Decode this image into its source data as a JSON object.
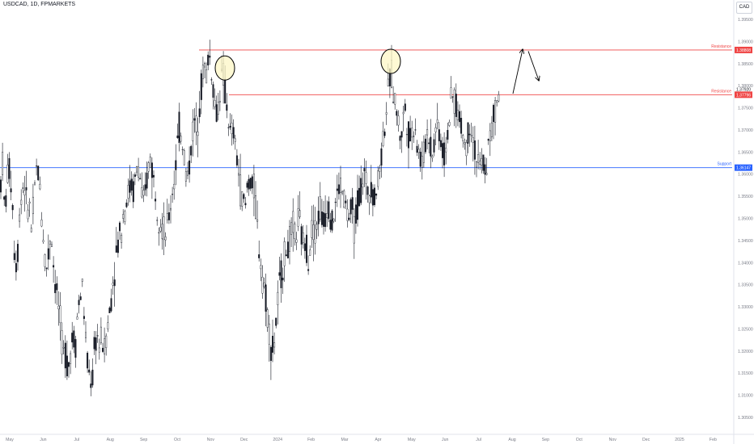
{
  "header": {
    "symbol_title": "USDCAD, 1D, FPMARKETS",
    "currency": "CAD"
  },
  "colors": {
    "resistance": "#ef4444",
    "support": "#2962ff",
    "candle": "#131722",
    "highlight_fill": "#fdf7c5",
    "highlight_stroke": "#000000",
    "axis_text": "#787b86"
  },
  "chart_data": {
    "type": "candlestick",
    "x_ticks": [
      "May",
      "Jun",
      "Jul",
      "Aug",
      "Sep",
      "Oct",
      "Nov",
      "Dec",
      "2024",
      "Feb",
      "Mar",
      "Apr",
      "May",
      "Jun",
      "Jul",
      "Aug",
      "Sep",
      "Oct",
      "Nov",
      "Dec",
      "2025",
      "Feb"
    ],
    "y_ticks": [
      "1.39500",
      "1.39000",
      "1.38500",
      "1.38000",
      "1.37500",
      "1.37000",
      "1.36500",
      "1.36000",
      "1.35500",
      "1.35000",
      "1.34500",
      "1.34000",
      "1.33500",
      "1.33000",
      "1.32500",
      "1.32000",
      "1.31500",
      "1.31000",
      "1.30500"
    ],
    "ylim": [
      1.3035,
      1.3983
    ],
    "lines": [
      {
        "label": "Resistance",
        "price_label": "1.38808",
        "value": 1.38808,
        "color": "#ef4444"
      },
      {
        "label": "Resistance",
        "price_label": "1.37796",
        "value": 1.37796,
        "color": "#ef4444"
      },
      {
        "label": "Support",
        "price_label": "1.36147",
        "value": 1.36147,
        "color": "#2962ff"
      }
    ],
    "extra_price_labels": [
      {
        "price_label": "1.37920",
        "value": 1.3792
      }
    ],
    "price_path": [
      [
        0,
        1.356
      ],
      [
        3,
        1.363
      ],
      [
        6,
        1.35
      ],
      [
        9,
        1.36
      ],
      [
        12,
        1.361
      ],
      [
        15,
        1.356
      ],
      [
        18,
        1.342
      ],
      [
        21,
        1.339
      ],
      [
        24,
        1.351
      ],
      [
        27,
        1.356
      ],
      [
        30,
        1.359
      ],
      [
        33,
        1.352
      ],
      [
        36,
        1.354
      ],
      [
        39,
        1.347
      ],
      [
        42,
        1.354
      ],
      [
        45,
        1.361
      ],
      [
        48,
        1.36
      ],
      [
        51,
        1.352
      ],
      [
        54,
        1.345
      ],
      [
        57,
        1.338
      ],
      [
        60,
        1.342
      ],
      [
        63,
        1.348
      ],
      [
        66,
        1.34
      ],
      [
        69,
        1.334
      ],
      [
        72,
        1.331
      ],
      [
        75,
        1.325
      ],
      [
        78,
        1.319
      ],
      [
        81,
        1.32
      ],
      [
        84,
        1.316
      ],
      [
        87,
        1.32
      ],
      [
        90,
        1.324
      ],
      [
        93,
        1.321
      ],
      [
        96,
        1.329
      ],
      [
        99,
        1.332
      ],
      [
        102,
        1.335
      ],
      [
        105,
        1.325
      ],
      [
        108,
        1.317
      ],
      [
        111,
        1.314
      ],
      [
        114,
        1.313
      ],
      [
        117,
        1.321
      ],
      [
        120,
        1.324
      ],
      [
        123,
        1.321
      ],
      [
        126,
        1.323
      ],
      [
        129,
        1.32
      ],
      [
        132,
        1.325
      ],
      [
        135,
        1.328
      ],
      [
        138,
        1.333
      ],
      [
        141,
        1.338
      ],
      [
        144,
        1.342
      ],
      [
        147,
        1.346
      ],
      [
        150,
        1.348
      ],
      [
        153,
        1.352
      ],
      [
        156,
        1.354
      ],
      [
        159,
        1.356
      ],
      [
        162,
        1.358
      ],
      [
        165,
        1.356
      ],
      [
        168,
        1.36
      ],
      [
        171,
        1.362
      ],
      [
        174,
        1.358
      ],
      [
        177,
        1.352
      ],
      [
        180,
        1.356
      ],
      [
        183,
        1.361
      ],
      [
        186,
        1.364
      ],
      [
        189,
        1.36
      ],
      [
        192,
        1.356
      ],
      [
        195,
        1.352
      ],
      [
        198,
        1.35
      ],
      [
        201,
        1.348
      ],
      [
        204,
        1.346
      ],
      [
        207,
        1.348
      ],
      [
        210,
        1.352
      ],
      [
        213,
        1.356
      ],
      [
        216,
        1.36
      ],
      [
        219,
        1.366
      ],
      [
        222,
        1.371
      ],
      [
        225,
        1.368
      ],
      [
        228,
        1.364
      ],
      [
        231,
        1.358
      ],
      [
        234,
        1.362
      ],
      [
        237,
        1.368
      ],
      [
        240,
        1.372
      ],
      [
        243,
        1.37
      ],
      [
        246,
        1.376
      ],
      [
        249,
        1.38
      ],
      [
        252,
        1.385
      ],
      [
        255,
        1.382
      ],
      [
        258,
        1.388
      ],
      [
        261,
        1.384
      ],
      [
        264,
        1.379
      ],
      [
        267,
        1.373
      ],
      [
        270,
        1.376
      ],
      [
        273,
        1.381
      ],
      [
        276,
        1.382
      ],
      [
        279,
        1.377
      ],
      [
        282,
        1.373
      ],
      [
        285,
        1.368
      ],
      [
        288,
        1.37
      ],
      [
        291,
        1.366
      ],
      [
        294,
        1.362
      ],
      [
        297,
        1.357
      ],
      [
        300,
        1.354
      ],
      [
        303,
        1.352
      ],
      [
        306,
        1.358
      ],
      [
        309,
        1.359
      ],
      [
        312,
        1.357
      ],
      [
        315,
        1.356
      ],
      [
        318,
        1.348
      ],
      [
        321,
        1.342
      ],
      [
        324,
        1.338
      ],
      [
        327,
        1.334
      ],
      [
        330,
        1.33
      ],
      [
        333,
        1.324
      ],
      [
        336,
        1.32
      ],
      [
        339,
        1.322
      ],
      [
        342,
        1.328
      ],
      [
        345,
        1.334
      ],
      [
        348,
        1.338
      ],
      [
        351,
        1.341
      ],
      [
        354,
        1.343
      ],
      [
        357,
        1.344
      ],
      [
        360,
        1.346
      ],
      [
        363,
        1.348
      ],
      [
        366,
        1.346
      ],
      [
        369,
        1.35
      ],
      [
        372,
        1.347
      ],
      [
        375,
        1.344
      ],
      [
        378,
        1.345
      ],
      [
        381,
        1.341
      ],
      [
        384,
        1.346
      ],
      [
        387,
        1.349
      ],
      [
        390,
        1.347
      ],
      [
        393,
        1.35
      ],
      [
        396,
        1.353
      ],
      [
        399,
        1.348
      ],
      [
        402,
        1.351
      ],
      [
        405,
        1.354
      ],
      [
        408,
        1.352
      ],
      [
        411,
        1.348
      ],
      [
        414,
        1.353
      ],
      [
        417,
        1.355
      ],
      [
        420,
        1.358
      ],
      [
        423,
        1.356
      ],
      [
        426,
        1.354
      ],
      [
        429,
        1.351
      ],
      [
        432,
        1.35
      ],
      [
        435,
        1.352
      ],
      [
        438,
        1.348
      ],
      [
        441,
        1.352
      ],
      [
        444,
        1.355
      ],
      [
        447,
        1.358
      ],
      [
        450,
        1.36
      ],
      [
        453,
        1.357
      ],
      [
        456,
        1.356
      ],
      [
        459,
        1.359
      ],
      [
        462,
        1.354
      ],
      [
        465,
        1.356
      ],
      [
        468,
        1.36
      ],
      [
        471,
        1.364
      ],
      [
        474,
        1.369
      ],
      [
        477,
        1.374
      ],
      [
        480,
        1.378
      ],
      [
        483,
        1.384
      ],
      [
        486,
        1.379
      ],
      [
        489,
        1.376
      ],
      [
        492,
        1.372
      ],
      [
        495,
        1.368
      ],
      [
        498,
        1.372
      ],
      [
        501,
        1.375
      ],
      [
        504,
        1.37
      ],
      [
        507,
        1.368
      ],
      [
        510,
        1.37
      ],
      [
        513,
        1.372
      ],
      [
        516,
        1.366
      ],
      [
        519,
        1.364
      ],
      [
        522,
        1.362
      ],
      [
        525,
        1.366
      ],
      [
        528,
        1.37
      ],
      [
        531,
        1.368
      ],
      [
        534,
        1.364
      ],
      [
        537,
        1.368
      ],
      [
        540,
        1.372
      ],
      [
        543,
        1.37
      ],
      [
        546,
        1.366
      ],
      [
        549,
        1.364
      ],
      [
        552,
        1.368
      ],
      [
        555,
        1.372
      ],
      [
        558,
        1.376
      ],
      [
        561,
        1.378
      ],
      [
        564,
        1.375
      ],
      [
        567,
        1.373
      ],
      [
        570,
        1.371
      ],
      [
        573,
        1.368
      ],
      [
        576,
        1.366
      ],
      [
        579,
        1.37
      ],
      [
        582,
        1.372
      ],
      [
        585,
        1.368
      ],
      [
        588,
        1.364
      ],
      [
        591,
        1.362
      ],
      [
        594,
        1.361
      ],
      [
        597,
        1.363
      ],
      [
        600,
        1.36
      ],
      [
        603,
        1.365
      ],
      [
        606,
        1.369
      ],
      [
        609,
        1.371
      ],
      [
        612,
        1.374
      ],
      [
        615,
        1.377
      ],
      [
        618,
        1.38
      ]
    ],
    "annotations": [
      {
        "type": "ellipse",
        "cx": 278,
        "price": 1.384
      },
      {
        "type": "ellipse",
        "cx": 483,
        "price": 1.3855
      },
      {
        "type": "arrow",
        "from": [
          634,
          1.3782
        ],
        "to": [
          646,
          1.3882
        ]
      },
      {
        "type": "arrow",
        "from": [
          653,
          1.3878
        ],
        "to": [
          666,
          1.3812
        ]
      }
    ]
  }
}
